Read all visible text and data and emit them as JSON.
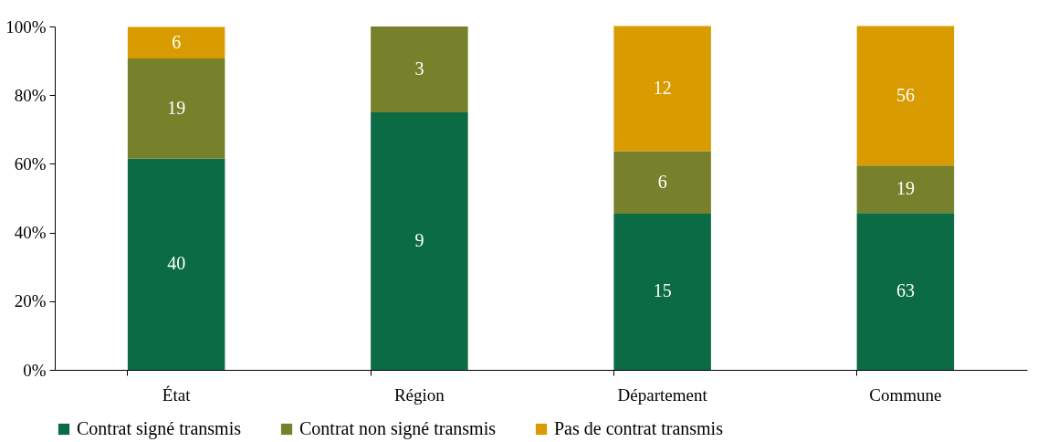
{
  "chart_data": {
    "type": "bar",
    "stacked": true,
    "categories": [
      "État",
      "Région",
      "Département",
      "Commune"
    ],
    "series": [
      {
        "name": "Contrat signé transmis",
        "color": "#0b6b44",
        "values": [
          61.5,
          75.0,
          45.5,
          45.7
        ]
      },
      {
        "name": "Contrat non signé transmis",
        "color": "#77802a",
        "values": [
          29.2,
          25.0,
          18.2,
          13.8
        ]
      },
      {
        "name": "Pas de contrat transmis",
        "color": "#d89c00",
        "values": [
          9.2,
          0,
          36.4,
          40.6
        ]
      }
    ],
    "annotations": [
      "40",
      "19",
      "6",
      "9",
      "3",
      "15",
      "6",
      "12",
      "63",
      "19",
      "56"
    ],
    "ylim": [
      0,
      100
    ],
    "yticks": [
      {
        "value": 0,
        "label": "0%"
      },
      {
        "value": 20,
        "label": "20%"
      },
      {
        "value": 40,
        "label": "40%"
      },
      {
        "value": 60,
        "label": "60%"
      },
      {
        "value": 80,
        "label": "80%"
      },
      {
        "value": 100,
        "label": "100%"
      }
    ],
    "grid": false,
    "legend": "bottom"
  }
}
